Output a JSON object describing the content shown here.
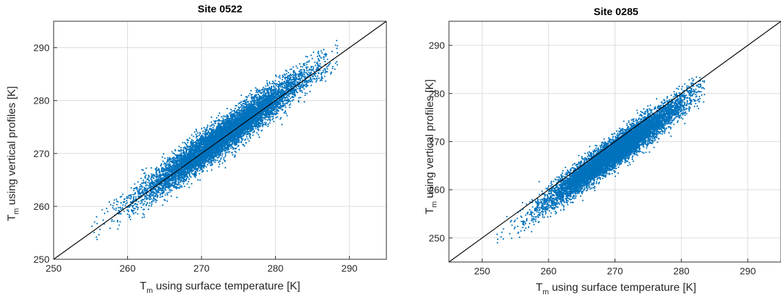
{
  "chart_data": [
    {
      "type": "scatter",
      "title": "Site 0522",
      "xlabel": "T_m using surface temperature [K]",
      "ylabel": "T_m using vertical profiles [K]",
      "xlabel_parts": {
        "main": "T",
        "sub": "m",
        "rest": " using surface temperature [K]"
      },
      "ylabel_parts": {
        "main": "T",
        "sub": "m",
        "rest": " using vertical profiles [K]"
      },
      "xlim": [
        250,
        295
      ],
      "ylim": [
        250,
        295
      ],
      "xticks": [
        250,
        260,
        270,
        280,
        290
      ],
      "yticks": [
        250,
        260,
        270,
        280,
        290
      ],
      "grid": true,
      "reference_line": "1:1",
      "marker_color": "#0072BD",
      "point_count_drawn": 9000,
      "distribution": {
        "x_center": 273.0,
        "x_sd": 5.5,
        "x_range": [
          255,
          288.5
        ],
        "slope": 1.0,
        "intercept": 0.3,
        "residual_sd": 1.6
      }
    },
    {
      "type": "scatter",
      "title": "Site 0285",
      "xlabel": "T_m using surface temperature [K]",
      "ylabel": "T_m using vertical profiles [K]",
      "xlabel_parts": {
        "main": "T",
        "sub": "m",
        "rest": " using surface temperature [K]"
      },
      "ylabel_parts": {
        "main": "T",
        "sub": "m",
        "rest": " using vertical profiles [K]"
      },
      "xlim": [
        245,
        295
      ],
      "ylim": [
        245,
        295
      ],
      "xticks": [
        250,
        260,
        270,
        280,
        290
      ],
      "yticks": [
        250,
        260,
        270,
        280,
        290
      ],
      "grid": true,
      "reference_line": "1:1",
      "marker_color": "#0072BD",
      "point_count_drawn": 9000,
      "distribution": {
        "x_center": 270.0,
        "x_sd": 5.2,
        "x_range": [
          251.5,
          283.5
        ],
        "slope": 1.0,
        "intercept": -2.2,
        "residual_sd": 1.5
      }
    }
  ]
}
